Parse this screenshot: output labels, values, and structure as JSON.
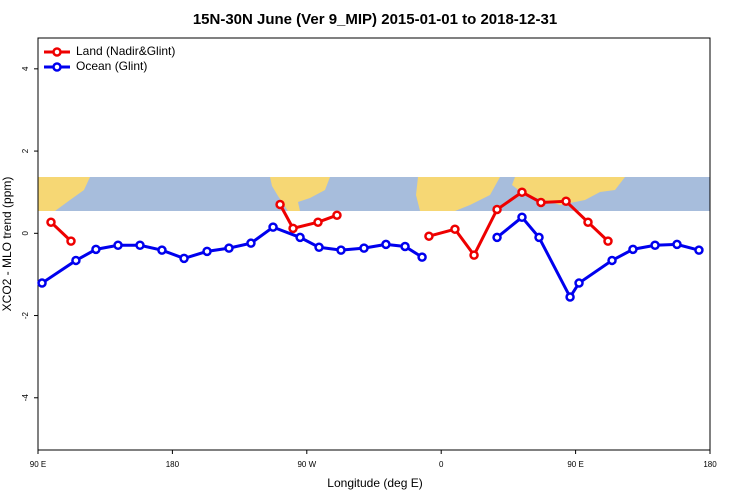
{
  "chart_data": {
    "type": "line",
    "title": "15N-30N June (Ver 9_MIP)   2015-01-01 to 2018-12-31",
    "x_label": "Longitude (deg E)",
    "y_label": "XCO2 - MLO trend (ppm)",
    "xlim": [
      90,
      540
    ],
    "ylim": [
      -5.27,
      4.75
    ],
    "xticks": [
      {
        "value": 90,
        "label": "90 E"
      },
      180,
      {
        "value": 270,
        "label": "90 W"
      },
      {
        "value": 360,
        "label": "0"
      },
      {
        "value": 450,
        "label": "90 E"
      },
      {
        "value": 540,
        "label": "180"
      }
    ],
    "yticks": [
      -4,
      -2,
      0,
      2,
      4
    ],
    "legend": "top-left",
    "series": [
      {
        "name": "Land (Nadir&Glint)",
        "color": "#ee0000",
        "x": [
          98.7,
          112.1,
          null,
          252.1,
          260.8,
          277.5,
          290.2,
          null,
          351.8,
          369.2,
          382,
          397.4,
          414.1,
          426.8,
          443.6,
          458.3,
          471.7
        ],
        "values": [
          0.27,
          -0.19,
          null,
          0.7,
          0.12,
          0.27,
          0.44,
          null,
          -0.07,
          0.1,
          -0.53,
          0.58,
          1.0,
          0.75,
          0.78,
          0.27,
          -0.19
        ]
      },
      {
        "name": "Ocean (Glint)",
        "color": "#0000ee",
        "x": [
          92.7,
          115.4,
          128.8,
          143.6,
          158.3,
          173,
          187.8,
          203.2,
          217.9,
          232.6,
          247.4,
          265.5,
          278.2,
          292.9,
          308.3,
          323,
          335.8,
          347.2,
          null,
          397.4,
          414.1,
          425.5,
          446.3,
          452.3,
          474.4,
          488.4,
          503.2,
          517.9,
          532.6
        ],
        "values": [
          -1.21,
          -0.66,
          -0.39,
          -0.29,
          -0.29,
          -0.41,
          -0.61,
          -0.44,
          -0.36,
          -0.24,
          0.15,
          -0.1,
          -0.34,
          -0.41,
          -0.36,
          -0.27,
          -0.32,
          -0.58,
          null,
          -0.1,
          0.39,
          -0.1,
          -1.55,
          -1.21,
          -0.66,
          -0.39,
          -0.29,
          -0.27,
          -0.41
        ]
      }
    ]
  }
}
